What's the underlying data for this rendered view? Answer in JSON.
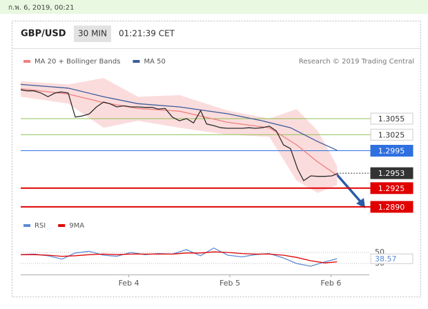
{
  "header": {
    "timestamp": "ก.พ. 6, 2019, 00:21",
    "symbol": "GBP/USD",
    "interval": "30 MIN",
    "clock": "01:21:39 CET",
    "credit": "Research © 2019 Trading Central"
  },
  "chart_data": [
    {
      "type": "line",
      "xlim": [
        2.93,
        6.38
      ],
      "ylim": [
        1.2877,
        1.3135
      ],
      "band": {
        "color": "#fbdcdc",
        "x": [
          2.93,
          3.4,
          3.75,
          4.09,
          4.5,
          4.98,
          5.39,
          5.66,
          5.87,
          6.06
        ],
        "upper": [
          1.3125,
          1.3119,
          1.3131,
          1.3096,
          1.3099,
          1.307,
          1.3055,
          1.3073,
          1.3032,
          1.2967
        ],
        "lower": [
          1.3096,
          1.3083,
          1.3038,
          1.3051,
          1.3038,
          1.3025,
          1.3021,
          1.2939,
          1.2916,
          1.2931
        ]
      },
      "series": [
        {
          "name": "MA 20 + Bollinger Bands",
          "color": "#f08080",
          "x": [
            2.93,
            3.4,
            3.75,
            4.09,
            4.5,
            4.98,
            5.39,
            5.66,
            5.87,
            6.06
          ],
          "values": [
            1.3111,
            1.3101,
            1.3085,
            1.3074,
            1.3069,
            1.3048,
            1.3038,
            1.3006,
            1.2974,
            1.2949
          ]
        },
        {
          "name": "MA 50",
          "color": "#3a5a9a",
          "x": [
            2.93,
            3.4,
            3.75,
            4.09,
            4.5,
            4.98,
            5.32,
            5.6,
            5.87,
            6.06
          ],
          "values": [
            1.3119,
            1.3112,
            1.3096,
            1.3083,
            1.3077,
            1.3064,
            1.3051,
            1.3038,
            1.3012,
            1.2996
          ]
        },
        {
          "color": "#2b2b2b",
          "x": [
            2.93,
            2.99,
            3.06,
            3.13,
            3.2,
            3.27,
            3.33,
            3.4,
            3.47,
            3.54,
            3.61,
            3.68,
            3.75,
            3.81,
            3.88,
            3.95,
            4.02,
            4.09,
            4.16,
            4.23,
            4.29,
            4.36,
            4.43,
            4.5,
            4.57,
            4.64,
            4.71,
            4.77,
            4.84,
            4.91,
            4.98,
            5.05,
            5.12,
            5.19,
            5.25,
            5.32,
            5.39,
            5.46,
            5.53,
            5.6,
            5.67,
            5.73,
            5.8,
            5.87,
            5.94,
            6.01,
            6.06
          ],
          "values": [
            1.3109,
            1.3107,
            1.3107,
            1.3103,
            1.3096,
            1.3103,
            1.3105,
            1.3103,
            1.3058,
            1.306,
            1.3064,
            1.3077,
            1.3086,
            1.3083,
            1.3077,
            1.3079,
            1.3077,
            1.3077,
            1.3076,
            1.3076,
            1.3073,
            1.3074,
            1.3058,
            1.3051,
            1.3055,
            1.3047,
            1.307,
            1.3045,
            1.3042,
            1.3038,
            1.3037,
            1.3037,
            1.3037,
            1.3038,
            1.3037,
            1.3038,
            1.3041,
            1.3032,
            1.3006,
            1.2999,
            1.2961,
            1.2939,
            1.2948,
            1.2947,
            1.2947,
            1.2948,
            1.2952
          ]
        }
      ],
      "levels": [
        {
          "value": 1.3055,
          "color": "#8cc152",
          "label_fill": "#ffffff",
          "label_color": "#333333"
        },
        {
          "value": 1.3025,
          "color": "#8cc152",
          "label_fill": "#ffffff",
          "label_color": "#333333"
        },
        {
          "value": 1.2995,
          "color": "#2f6fe0",
          "label_fill": "#2f6fe0",
          "label_color": "#ffffff"
        },
        {
          "value": 1.2953,
          "color": "#333333",
          "label_fill": "#333333",
          "label_color": "#ffffff",
          "dashed": true
        },
        {
          "value": 1.2925,
          "color": "#e00000",
          "label_fill": "#e00000",
          "label_color": "#ffffff"
        },
        {
          "value": 1.289,
          "label": "1.2890",
          "color": "#e00000",
          "label_fill": "#e00000",
          "label_color": "#ffffff"
        }
      ]
    },
    {
      "type": "line",
      "xlim": [
        2.93,
        6.38
      ],
      "ylim": [
        20,
        80
      ],
      "yticks": [
        30,
        50
      ],
      "xticks": [
        {
          "value": 4,
          "label": "Feb 4"
        },
        {
          "value": 5,
          "label": "Feb 5"
        },
        {
          "value": 6,
          "label": "Feb 6"
        }
      ],
      "series": [
        {
          "name": "RSI",
          "color": "#5b8ad6",
          "x": [
            2.93,
            3.06,
            3.2,
            3.34,
            3.47,
            3.61,
            3.75,
            3.88,
            4.02,
            4.16,
            4.29,
            4.43,
            4.57,
            4.71,
            4.84,
            4.98,
            5.12,
            5.25,
            5.39,
            5.53,
            5.66,
            5.8,
            5.94,
            6.06
          ],
          "values": [
            46,
            47,
            44,
            38,
            49,
            52,
            45,
            43,
            50,
            46,
            48,
            47,
            55,
            44,
            58,
            45,
            42,
            46,
            48,
            40,
            30,
            25,
            33,
            38.57
          ]
        },
        {
          "name": "9MA",
          "color": "#e00000",
          "x": [
            2.93,
            3.06,
            3.2,
            3.34,
            3.47,
            3.61,
            3.75,
            3.88,
            4.02,
            4.16,
            4.29,
            4.43,
            4.57,
            4.71,
            4.84,
            4.98,
            5.12,
            5.25,
            5.39,
            5.53,
            5.66,
            5.8,
            5.94,
            6.06
          ],
          "values": [
            46,
            46,
            45,
            43,
            44,
            46,
            47,
            46,
            47,
            47,
            47,
            47,
            49,
            49,
            51,
            50,
            48,
            47,
            47,
            45,
            41,
            35,
            31,
            33
          ]
        }
      ]
    }
  ]
}
